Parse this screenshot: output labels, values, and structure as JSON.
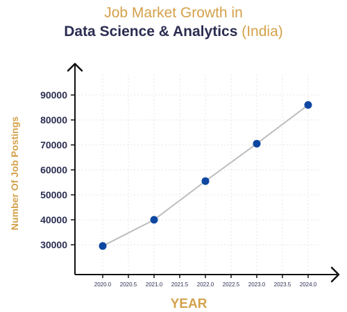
{
  "title": {
    "line1": "Job Market Growth in",
    "line2_main": "Data Science & Analytics",
    "line2_accent": "(India)"
  },
  "colors": {
    "accent": "#d4a14a",
    "navy": "#2b2d52",
    "point": "#0d47a1",
    "line": "#bdbdbd",
    "grid": "#e6e6e6"
  },
  "chart_data": {
    "type": "line",
    "xlabel": "YEAR",
    "ylabel": "Number Of Job Postings",
    "x": [
      2020,
      2021,
      2022,
      2023,
      2024
    ],
    "series": [
      {
        "values": [
          29500,
          40000,
          55500,
          70500,
          86000
        ]
      }
    ],
    "xlim": [
      2020,
      2024
    ],
    "ylim": [
      30000,
      90000
    ],
    "x_ticks": [
      "2020.0",
      "2020.5",
      "2021.0",
      "2021.5",
      "2022.0",
      "2022.5",
      "2023.0",
      "2023.5",
      "2024.0"
    ],
    "y_ticks": [
      "30000",
      "40000",
      "50000",
      "60000",
      "70000",
      "80000",
      "90000"
    ],
    "grid": true
  }
}
